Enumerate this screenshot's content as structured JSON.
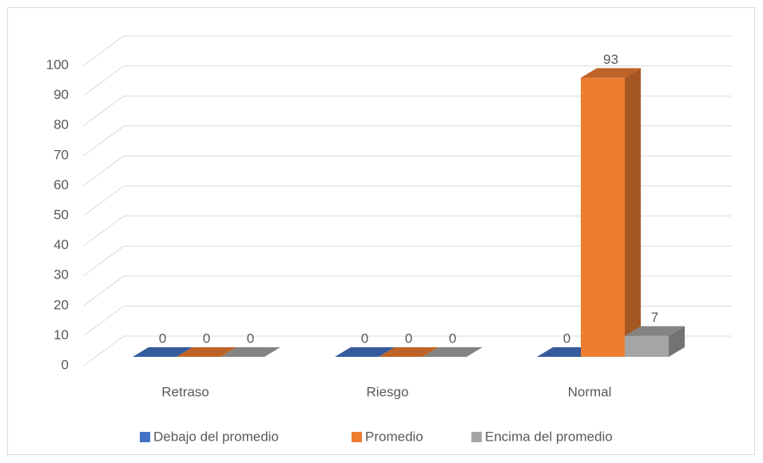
{
  "chart_data": {
    "type": "bar3d",
    "categories": [
      "Retraso",
      "Riesgo",
      "Normal"
    ],
    "series": [
      {
        "name": "Debajo del promedio",
        "color": "#4472c4",
        "values": [
          0,
          0,
          0
        ]
      },
      {
        "name": "Promedio",
        "color": "#ed7d31",
        "values": [
          0,
          0,
          93
        ]
      },
      {
        "name": "Encima del promedio",
        "color": "#a5a5a5",
        "values": [
          0,
          0,
          7
        ]
      }
    ],
    "ylim": [
      0,
      100
    ],
    "yticks": [
      0,
      10,
      20,
      30,
      40,
      50,
      60,
      70,
      80,
      90,
      100
    ],
    "grid": true,
    "legend": "bottom"
  }
}
